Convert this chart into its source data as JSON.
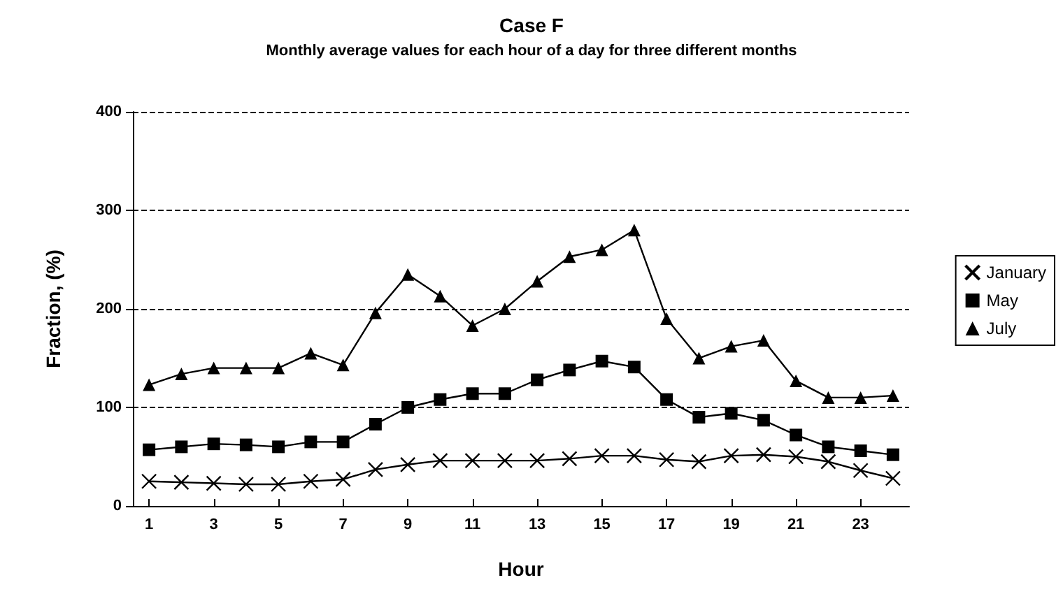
{
  "chart_data": {
    "type": "line",
    "title": "Case F",
    "subtitle": "Monthly average values for each hour of a day for three different months",
    "xlabel": "Hour",
    "ylabel": "Fraction, (%)",
    "x": [
      1,
      2,
      3,
      4,
      5,
      6,
      7,
      8,
      9,
      10,
      11,
      12,
      13,
      14,
      15,
      16,
      17,
      18,
      19,
      20,
      21,
      22,
      23,
      24
    ],
    "xlim": [
      0.5,
      24.5
    ],
    "xticks": [
      1,
      3,
      5,
      7,
      9,
      11,
      13,
      15,
      17,
      19,
      21,
      23
    ],
    "series": [
      {
        "name": "January",
        "color": "#000000",
        "marker": "cross",
        "values": [
          25,
          24,
          23,
          22,
          22,
          25,
          27,
          37,
          42,
          46,
          46,
          46,
          46,
          48,
          51,
          51,
          47,
          45,
          51,
          52,
          50,
          45,
          36,
          28
        ]
      },
      {
        "name": "May",
        "color": "#000000",
        "marker": "square",
        "values": [
          57,
          60,
          63,
          62,
          60,
          65,
          65,
          83,
          100,
          108,
          114,
          114,
          128,
          138,
          147,
          141,
          108,
          90,
          94,
          87,
          72,
          60,
          56,
          52
        ]
      },
      {
        "name": "July",
        "color": "#000000",
        "marker": "triangle",
        "values": [
          123,
          134,
          140,
          140,
          140,
          155,
          143,
          196,
          235,
          213,
          183,
          200,
          228,
          253,
          260,
          280,
          190,
          150,
          162,
          168,
          127,
          110,
          110,
          112
        ]
      }
    ],
    "ylim": [
      0,
      400
    ],
    "yticks": [
      0,
      100,
      200,
      300,
      400
    ],
    "grid": "y",
    "legend": "right"
  }
}
